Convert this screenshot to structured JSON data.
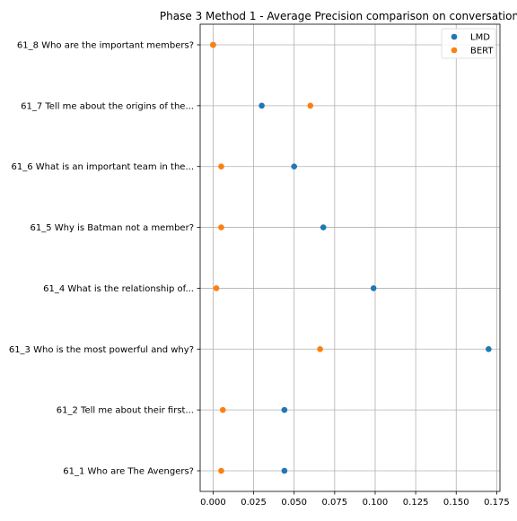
{
  "chart_data": {
    "type": "scatter",
    "title": "Phase 3 Method 1 - Average Precision comparison on conversation",
    "xlabel": "",
    "ylabel": "",
    "xlim": [
      -0.008,
      0.177
    ],
    "x_ticks": [
      "0.000",
      "0.025",
      "0.050",
      "0.075",
      "0.100",
      "0.125",
      "0.150",
      "0.175"
    ],
    "x_tick_values": [
      0,
      0.025,
      0.05,
      0.075,
      0.1,
      0.125,
      0.15,
      0.175
    ],
    "grid": true,
    "legend_position": "top-right",
    "categories": [
      "61_1 Who are The Avengers?",
      "61_2 Tell me about their first...",
      "61_3 Who is the most powerful and why?",
      "61_4 What is the relationship of...",
      "61_5 Why is Batman not a member?",
      "61_6 What is an important team in the...",
      "61_7 Tell me about the origins of the...",
      "61_8 Who are the important members?"
    ],
    "series": [
      {
        "name": "LMD",
        "color": "#1f77b4",
        "values": [
          0.044,
          0.044,
          0.17,
          0.099,
          0.068,
          0.05,
          0.03,
          0.0
        ]
      },
      {
        "name": "BERT",
        "color": "#ff7f0e",
        "values": [
          0.005,
          0.006,
          0.066,
          0.002,
          0.005,
          0.005,
          0.06,
          0.0
        ]
      }
    ]
  }
}
